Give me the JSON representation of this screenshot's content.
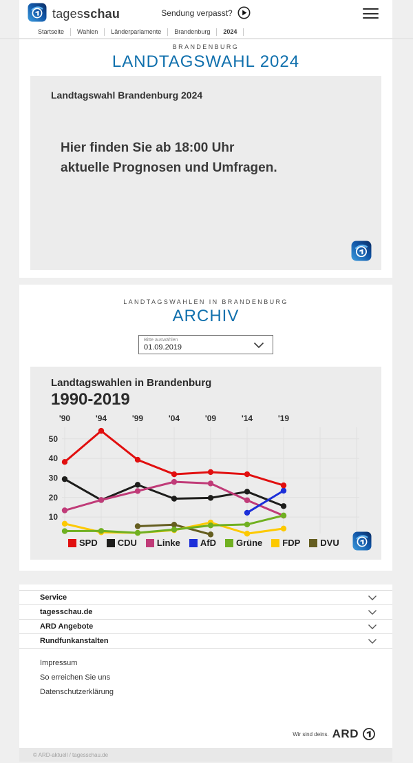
{
  "header": {
    "logo_light": "tages",
    "logo_bold": "schau",
    "sendung_link": "Sendung verpasst?",
    "breadcrumbs": [
      {
        "label": "Startseite",
        "active": false
      },
      {
        "label": "Wahlen",
        "active": false
      },
      {
        "label": "Länderparlamente",
        "active": false
      },
      {
        "label": "Brandenburg",
        "active": false
      },
      {
        "label": "2024",
        "active": true
      }
    ]
  },
  "hero": {
    "kicker": "BRANDENBURG",
    "title": "LANDTAGSWAHL 2024",
    "card_title": "Landtagswahl Brandenburg 2024",
    "card_message_line1": "Hier finden Sie ab 18:00 Uhr",
    "card_message_line2": "aktuelle Prognosen und Umfragen."
  },
  "archive": {
    "kicker": "LANDTAGSWAHLEN IN BRANDENBURG",
    "title": "ARCHIV",
    "select_label": "Bitte auswählen",
    "select_value": "01.09.2019"
  },
  "chart_data": {
    "type": "line",
    "title": "Landtagswahlen in Brandenburg",
    "subtitle": "1990-2019",
    "x_tick_labels": [
      "'90",
      "'94",
      "'99",
      "'04",
      "'09",
      "'14",
      "'19"
    ],
    "years": [
      1990,
      1994,
      1999,
      2004,
      2009,
      2014,
      2019
    ],
    "y_ticks": [
      10,
      20,
      30,
      40,
      50
    ],
    "ylim": [
      0,
      58
    ],
    "unit": "percent",
    "grid": true,
    "legend_position": "bottom",
    "series": [
      {
        "name": "SPD",
        "color": "#e10f0f",
        "values": [
          38.2,
          54.1,
          39.3,
          31.9,
          33.0,
          31.9,
          26.2
        ]
      },
      {
        "name": "CDU",
        "color": "#1d1d1b",
        "values": [
          29.4,
          18.7,
          26.5,
          19.4,
          19.8,
          23.0,
          15.6
        ]
      },
      {
        "name": "Linke",
        "color": "#c03b78",
        "values": [
          13.4,
          18.7,
          23.3,
          28.0,
          27.2,
          18.6,
          10.7
        ]
      },
      {
        "name": "AfD",
        "color": "#1c2fd9",
        "values": [
          null,
          null,
          null,
          null,
          null,
          12.2,
          23.5
        ]
      },
      {
        "name": "Grüne",
        "color": "#70b021",
        "values": [
          2.8,
          2.9,
          1.9,
          3.6,
          5.7,
          6.2,
          10.8
        ]
      },
      {
        "name": "FDP",
        "color": "#fdc900",
        "values": [
          6.6,
          2.2,
          1.9,
          3.3,
          7.2,
          1.5,
          4.1
        ]
      },
      {
        "name": "DVU",
        "color": "#655e20",
        "values": [
          null,
          null,
          5.3,
          6.1,
          1.1,
          null,
          null
        ]
      }
    ]
  },
  "footer": {
    "accordion": [
      "Service",
      "tagesschau.de",
      "ARD Angebote",
      "Rundfunkanstalten"
    ],
    "links": [
      "Impressum",
      "So erreichen Sie uns",
      "Datenschutzerklärung"
    ],
    "ard_claim": "Wir sind deins.",
    "ard_wordmark": "ARD",
    "copyright": "© ARD-aktuell / tagesschau.de"
  },
  "colors": {
    "accent_blue": "#1070ad",
    "page_bg": "#efefef",
    "card_bg": "#ececec",
    "gridline": "#dfdfdf",
    "text_dark": "#2e2e2e"
  }
}
